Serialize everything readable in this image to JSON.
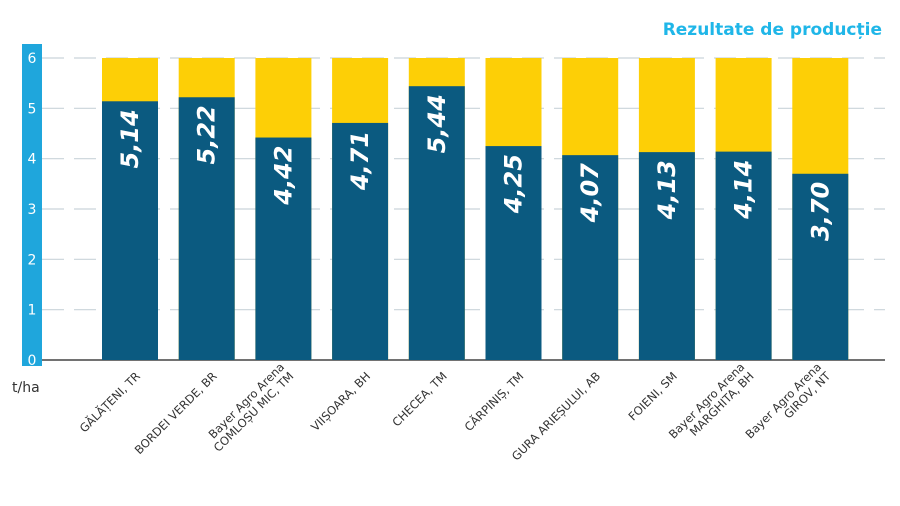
{
  "chart_data": {
    "type": "bar",
    "title": "Rezultate de producție",
    "ylabel": "t/ha",
    "xlabel": "",
    "ylim": [
      0,
      6
    ],
    "yticks": [
      "0",
      "1",
      "2",
      "3",
      "4",
      "5",
      "6"
    ],
    "grid": true,
    "categories": [
      [
        "GĂLĂȚENI, TR"
      ],
      [
        "BORDEI VERDE, BR"
      ],
      [
        "Bayer Agro Arena",
        "COMLOȘU MIC, TM"
      ],
      [
        "VIIȘOARA, BH"
      ],
      [
        "CHECEA, TM"
      ],
      [
        "CĂRPINIȘ, TM"
      ],
      [
        "GURA ARIEȘULUI, AB"
      ],
      [
        "FOIENI, SM"
      ],
      [
        "Bayer Agro Arena",
        "MARGHITA, BH"
      ],
      [
        "Bayer Agro Arena",
        "GIROV, NT"
      ]
    ],
    "values": [
      5.14,
      5.22,
      4.42,
      4.71,
      5.44,
      4.25,
      4.07,
      4.13,
      4.14,
      3.7
    ],
    "value_labels": [
      "5,14",
      "5,22",
      "4,42",
      "4,71",
      "5,44",
      "4,25",
      "4,07",
      "4,13",
      "4,14",
      "3,70"
    ],
    "background_value": 6,
    "colors": {
      "value": "#0b5a80",
      "background": "#fdcf06",
      "axis": "#1fa6dc",
      "title": "#1fb6e8",
      "grid": "#c9d4da"
    }
  }
}
